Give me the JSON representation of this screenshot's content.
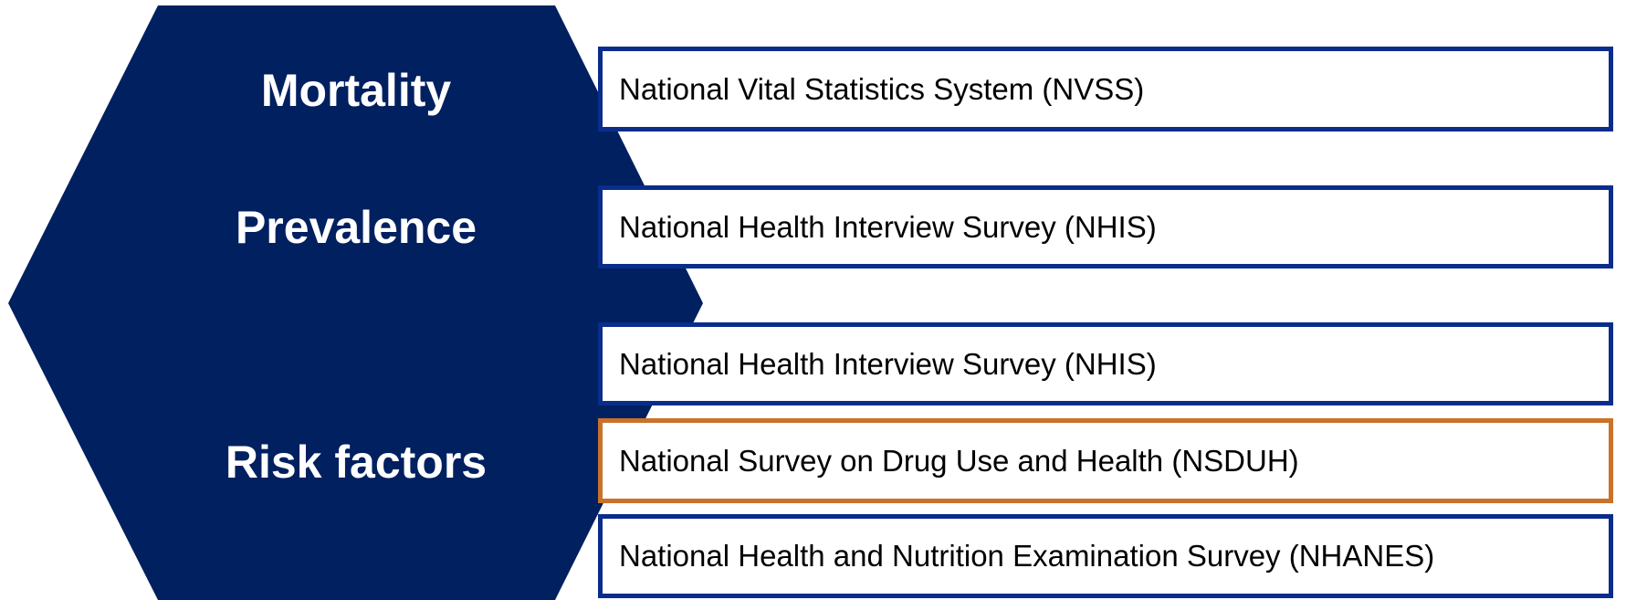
{
  "groups": [
    {
      "label": "Mortality",
      "sources": [
        "National Vital Statistics System (NVSS)"
      ]
    },
    {
      "label": "Prevalence",
      "sources": [
        "National Health Interview Survey (NHIS)"
      ]
    },
    {
      "label": "Risk factors",
      "sources": [
        "National Health Interview Survey (NHIS)",
        "National Survey on Drug Use and Health (NSDUH)",
        "National Health and Nutrition Examination Survey (NHANES)"
      ]
    }
  ]
}
